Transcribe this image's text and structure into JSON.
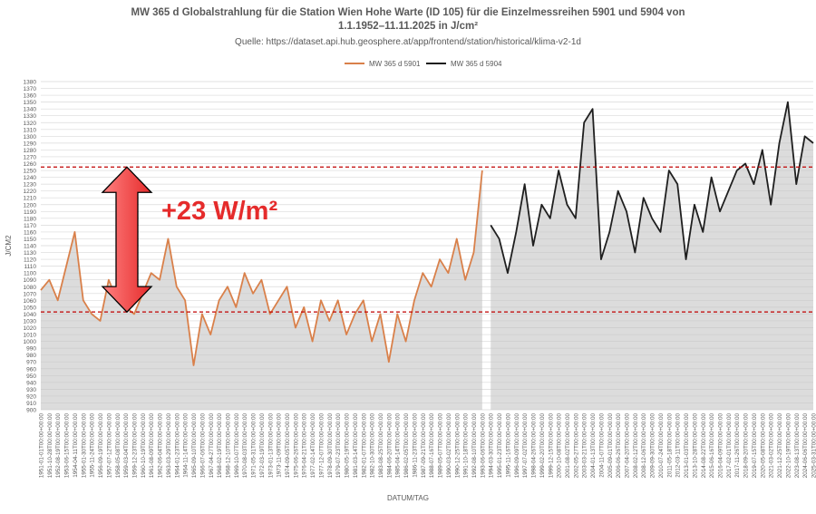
{
  "chart_data": {
    "type": "line",
    "title": "MW 365 d Globalstrahlung für die Station Wien Hohe Warte (ID 105) für die Einzelmessreihen 5901 und 5904 von",
    "title_line2": "1.1.1952–11.11.2025 in J/cm²",
    "subtitle": "Quelle: https://dataset.api.hub.geosphere.at/app/frontend/station/historical/klima-v2-1d",
    "xlabel": "DATUM/TAG",
    "ylabel": "J/CM2",
    "annotation": "+23 W/m²",
    "annotation_color": "#e52b2b",
    "hlines": [
      1255,
      1043
    ],
    "x": [
      "1951-01-01T00:00+00:00",
      "1951-10-28T00:00+00:00",
      "1952-08-19T00:00+00:00",
      "1953-06-15T00:00+00:00",
      "1954-04-11T00:00+00:00",
      "1955-01-30T00:00+00:00",
      "1955-11-24T00:00+00:00",
      "1956-09-19T00:00+00:00",
      "1957-07-12T00:00+00:00",
      "1958-05-08T00:00+00:00",
      "1959-03-04T00:00+00:00",
      "1959-12-23T00:00+00:00",
      "1960-10-19T00:00+00:00",
      "1961-08-09T00:00+00:00",
      "1962-06-04T00:00+00:00",
      "1963-03-29T00:00+00:00",
      "1964-01-23T00:00+00:00",
      "1964-11-14T00:00+00:00",
      "1965-09-10T00:00+00:00",
      "1966-07-06T00:00+00:00",
      "1967-04-27T00:00+00:00",
      "1968-02-19T00:00+00:00",
      "1968-12-10T00:00+00:00",
      "1969-10-07T00:00+00:00",
      "1970-08-03T00:00+00:00",
      "1971-05-31T00:00+00:00",
      "1972-03-19T00:00+00:00",
      "1973-01-13T00:00+00:00",
      "1973-11-09T00:00+00:00",
      "1974-09-05T00:00+00:00",
      "1975-06-26T00:00+00:00",
      "1976-04-21T00:00+00:00",
      "1977-02-14T00:00+00:00",
      "1977-12-07T00:00+00:00",
      "1978-09-30T00:00+00:00",
      "1979-07-23T00:00+00:00",
      "1980-05-19T00:00+00:00",
      "1981-03-14T00:00+00:00",
      "1982-01-07T00:00+00:00",
      "1982-10-30T00:00+00:00",
      "1983-08-25T00:00+00:00",
      "1984-06-20T00:00+00:00",
      "1985-04-14T00:00+00:00",
      "1986-02-05T00:00+00:00",
      "1986-11-23T00:00+00:00",
      "1987-09-21T00:00+00:00",
      "1988-07-16T00:00+00:00",
      "1989-05-07T00:00+00:00",
      "1990-03-02T00:00+00:00",
      "1990-12-25T00:00+00:00",
      "1991-10-18T00:00+00:00",
      "1992-08-10T00:00+00:00",
      "1993-06-06T00:00+00:00",
      "1994-03-30T00:00+00:00",
      "1995-01-23T00:00+00:00",
      "1995-11-16T00:00+00:00",
      "1996-09-09T00:00+00:00",
      "1997-07-02T00:00+00:00",
      "1998-04-26T00:00+00:00",
      "1999-02-20T00:00+00:00",
      "1999-12-15T00:00+00:00",
      "2000-10-08T00:00+00:00",
      "2001-08-02T00:00+00:00",
      "2002-05-27T00:00+00:00",
      "2003-03-21T00:00+00:00",
      "2004-01-13T00:00+00:00",
      "2004-11-07T00:00+00:00",
      "2005-09-01T00:00+00:00",
      "2006-06-26T00:00+00:00",
      "2007-04-20T00:00+00:00",
      "2008-02-12T00:00+00:00",
      "2008-12-06T00:00+00:00",
      "2009-09-30T00:00+00:00",
      "2010-07-24T00:00+00:00",
      "2011-05-18T00:00+00:00",
      "2012-03-11T00:00+00:00",
      "2013-01-03T00:00+00:00",
      "2013-10-28T00:00+00:00",
      "2014-08-22T00:00+00:00",
      "2015-06-16T00:00+00:00",
      "2016-04-09T00:00+00:00",
      "2017-02-01T00:00+00:00",
      "2017-11-26T00:00+00:00",
      "2018-09-20T00:00+00:00",
      "2019-07-15T00:00+00:00",
      "2020-05-08T00:00+00:00",
      "2021-03-02T00:00+00:00",
      "2021-12-25T00:00+00:00",
      "2022-10-19T00:00+00:00",
      "2023-08-13T00:00+00:00",
      "2024-06-06T00:00+00:00",
      "2025-03-31T00:00+00:00"
    ],
    "series": [
      {
        "name": "MW 365 d 5901",
        "color": "#d9804a",
        "values": [
          1075,
          1090,
          1060,
          1110,
          1160,
          1060,
          1040,
          1030,
          1090,
          1060,
          1050,
          1040,
          1070,
          1100,
          1090,
          1150,
          1080,
          1060,
          965,
          1040,
          1010,
          1060,
          1080,
          1050,
          1100,
          1070,
          1090,
          1040,
          1060,
          1080,
          1020,
          1050,
          1000,
          1060,
          1030,
          1060,
          1010,
          1040,
          1060,
          1000,
          1040,
          970,
          1040,
          1000,
          1060,
          1100,
          1080,
          1120,
          1100,
          1150,
          1090,
          1130,
          1250,
          null,
          null,
          null,
          null,
          null,
          null,
          null,
          null,
          null,
          null,
          null,
          null,
          null,
          null,
          null,
          null,
          null,
          null,
          null,
          null,
          null,
          null,
          null,
          null,
          null,
          null,
          null,
          null,
          null,
          null,
          null,
          null,
          null,
          null,
          null,
          null,
          null,
          null,
          null
        ]
      },
      {
        "name": "MW 365 d 5904",
        "color": "#1f1f1f",
        "values": [
          null,
          null,
          null,
          null,
          null,
          null,
          null,
          null,
          null,
          null,
          null,
          null,
          null,
          null,
          null,
          null,
          null,
          null,
          null,
          null,
          null,
          null,
          null,
          null,
          null,
          null,
          null,
          null,
          null,
          null,
          null,
          null,
          null,
          null,
          null,
          null,
          null,
          null,
          null,
          null,
          null,
          null,
          null,
          null,
          null,
          null,
          null,
          null,
          null,
          null,
          null,
          null,
          null,
          1170,
          1150,
          1100,
          1160,
          1230,
          1140,
          1200,
          1180,
          1250,
          1200,
          1180,
          1320,
          1340,
          1120,
          1160,
          1220,
          1190,
          1130,
          1210,
          1180,
          1160,
          1250,
          1230,
          1120,
          1200,
          1160,
          1240,
          1190,
          1220,
          1250,
          1260,
          1230,
          1280,
          1200,
          1290,
          1350,
          1230,
          1300,
          1290
        ]
      }
    ],
    "ylim": [
      900,
      1380
    ],
    "yticks": [
      900,
      910,
      920,
      930,
      940,
      950,
      960,
      970,
      980,
      990,
      1000,
      1010,
      1020,
      1030,
      1040,
      1050,
      1060,
      1070,
      1080,
      1090,
      1100,
      1110,
      1120,
      1130,
      1140,
      1150,
      1160,
      1170,
      1180,
      1190,
      1200,
      1210,
      1220,
      1230,
      1240,
      1250,
      1260,
      1270,
      1280,
      1290,
      1300,
      1310,
      1320,
      1330,
      1340,
      1350,
      1360,
      1370,
      1380
    ],
    "grid": true,
    "legend": "top"
  }
}
